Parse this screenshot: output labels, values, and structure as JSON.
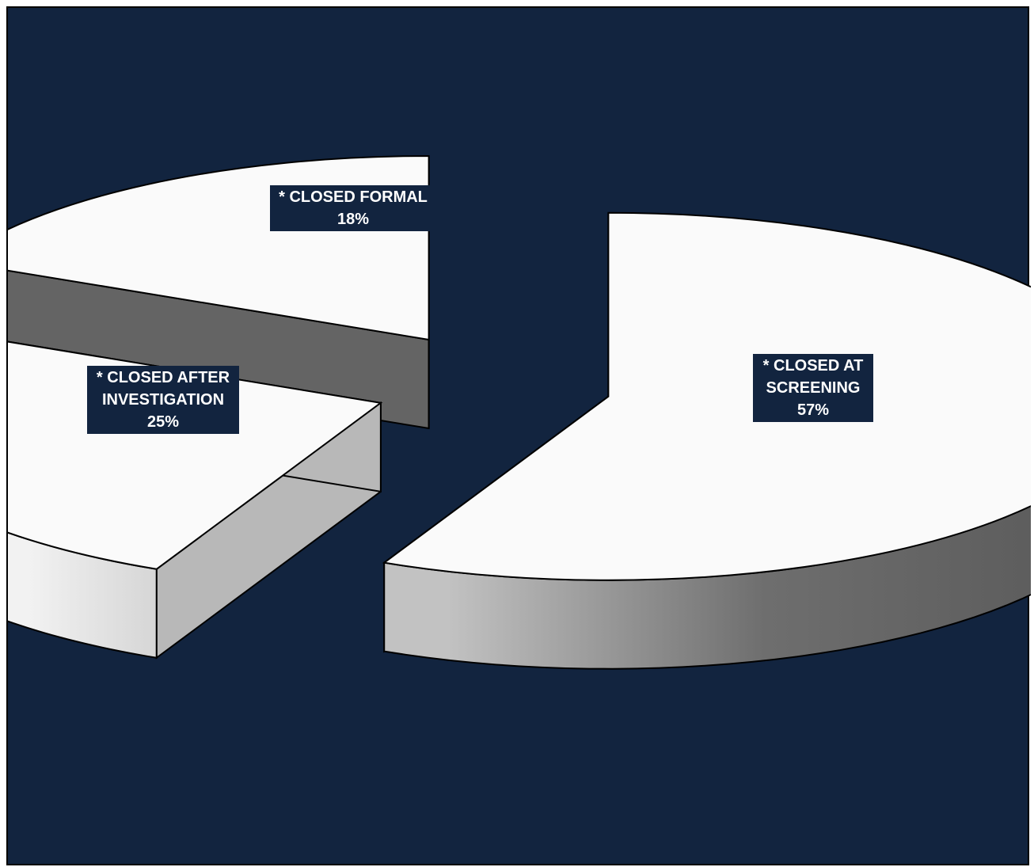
{
  "chart_data": {
    "type": "pie",
    "slices": [
      {
        "label_line1": "*  CLOSED AT",
        "label_line2": "SCREENING",
        "value": 57,
        "value_label": "57%"
      },
      {
        "label_line1": "*  CLOSED AFTER",
        "label_line2": "INVESTIGATION",
        "value": 25,
        "value_label": "25%"
      },
      {
        "label_line1": "*  CLOSED FORMAL",
        "label_line2": "",
        "value": 18,
        "value_label": "18%"
      }
    ]
  },
  "colors": {
    "background": "#12243F",
    "slice_top": "#FAFAFA",
    "outline": "#000000",
    "side_dark": "#646464",
    "side_light": "#E8E8E8"
  }
}
